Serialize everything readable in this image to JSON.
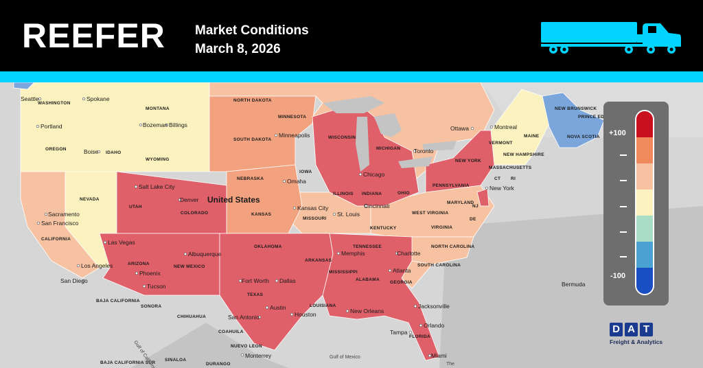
{
  "header": {
    "title": "REEFER",
    "subtitle_line1": "Market Conditions",
    "subtitle_line2": "March 8, 2026"
  },
  "colors": {
    "header_bg": "#000000",
    "accent": "#00d4ff",
    "hot": "#c9101f",
    "warm": "#f08a5d",
    "mild": "#f7c2a1",
    "neutral": "#fbf2bf",
    "cool_light": "#a9ddc6",
    "cool": "#4aa2d3",
    "cold": "#1a4fc4"
  },
  "legend": {
    "top_label": "+100",
    "bottom_label": "-100",
    "levels": [
      "+100",
      "",
      "",
      "",
      "",
      "",
      "-100"
    ]
  },
  "map": {
    "country_label": "United States",
    "states": [
      "WASHINGTON",
      "MONTANA",
      "NORTH DAKOTA",
      "MINNESOTA",
      "WISCONSIN",
      "MICHIGAN",
      "NEW YORK",
      "VERMONT",
      "MAINE",
      "NEW HAMPSHIRE",
      "MASSACHUSETTS",
      "OREGON",
      "IDAHO",
      "WYOMING",
      "SOUTH DAKOTA",
      "IOWA",
      "NEBRASKA",
      "NEVADA",
      "UTAH",
      "COLORADO",
      "KANSAS",
      "MISSOURI",
      "ILLINOIS",
      "INDIANA",
      "OHIO",
      "PENNSYLVANIA",
      "WEST VIRGINIA",
      "VIRGINIA",
      "MARYLAND",
      "DE",
      "CT",
      "RI",
      "NJ",
      "KENTUCKY",
      "CALIFORNIA",
      "ARIZONA",
      "NEW MEXICO",
      "OKLAHOMA",
      "ARKANSAS",
      "TENNESSEE",
      "NORTH CAROLINA",
      "SOUTH CAROLINA",
      "TEXAS",
      "LOUISIANA",
      "MISSISSIPPI",
      "ALABAMA",
      "GEORGIA",
      "FLORIDA",
      "NEW BRUNSWICK",
      "PRINCE EDWARD ISLAND",
      "NOVA SCOTIA"
    ],
    "cities": [
      "Seattle",
      "Spokane",
      "Portland",
      "Boise",
      "Bozeman",
      "Billings",
      "Minneapolis",
      "Ottawa",
      "Montreal",
      "Toronto",
      "Chicago",
      "Omaha",
      "Salt Lake City",
      "Denver",
      "Kansas City",
      "St. Louis",
      "Cincinnati",
      "New York",
      "Sacramento",
      "San Francisco",
      "Las Vegas",
      "Los Angeles",
      "San Diego",
      "Phoenix",
      "Tucson",
      "Albuquerque",
      "Fort Worth",
      "Dallas",
      "Austin",
      "Houston",
      "San Antonio",
      "New Orleans",
      "Memphis",
      "Atlanta",
      "Charlotte",
      "Jacksonville",
      "Orlando",
      "Tampa",
      "Miami",
      "Monterrey",
      "Bermuda"
    ],
    "mexico_states": [
      "BAJA CALIFORNIA",
      "SONORA",
      "CHIHUAHUA",
      "COAHUILA",
      "NUEVO LEON",
      "SINALOA",
      "BAJA CALIFORNIA SUR",
      "DURANGO"
    ],
    "water": [
      "Gulf of California",
      "Gulf of Mexico",
      "The"
    ]
  },
  "logo": {
    "letters": [
      "D",
      "A",
      "T"
    ],
    "tagline": "Freight & Analytics"
  }
}
